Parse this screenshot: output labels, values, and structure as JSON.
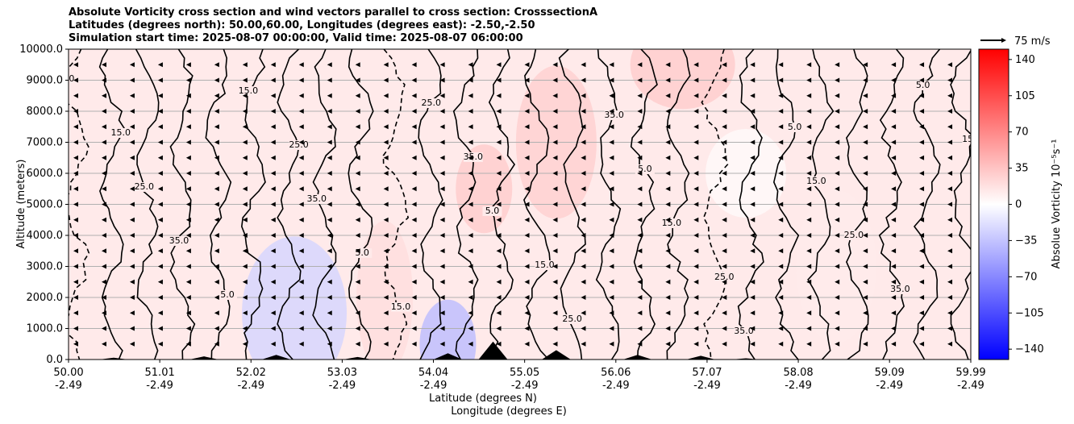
{
  "chart_data": {
    "type": "heatmap",
    "title_lines": [
      "Absolute Vorticity cross section and wind vectors parallel to cross section: CrosssectionA",
      "Latitudes (degrees north): 50.00,60.00, Longitudes (degrees east): -2.50,-2.50",
      "Simulation start time: 2025-08-07 00:00:00, Valid time: 2025-08-07 06:00:00"
    ],
    "ylabel": "Altitude (meters)",
    "xlabel_lat": "Latitude (degrees N)",
    "xlabel_lon": "Longitude (degrees E)",
    "ylim": [
      0,
      10000
    ],
    "xlim": [
      50.0,
      59.99
    ],
    "y_ticks": [
      0,
      1000,
      2000,
      3000,
      4000,
      5000,
      6000,
      7000,
      8000,
      9000,
      10000
    ],
    "y_tick_labels": [
      "0.0",
      "1000.0",
      "2000.0",
      "3000.0",
      "4000.0",
      "5000.0",
      "6000.0",
      "7000.0",
      "8000.0",
      "9000.0",
      "10000.0"
    ],
    "x_ticks": [
      50.0,
      51.01,
      52.02,
      53.03,
      54.04,
      55.05,
      56.06,
      57.07,
      58.08,
      59.09,
      59.99
    ],
    "x_tick_lat_labels": [
      "50.00",
      "51.01",
      "52.02",
      "53.03",
      "54.04",
      "55.05",
      "56.06",
      "57.07",
      "58.08",
      "59.09",
      "59.99"
    ],
    "x_tick_lon_labels": [
      "-2.49",
      "-2.49",
      "-2.49",
      "-2.49",
      "-2.49",
      "-2.49",
      "-2.49",
      "-2.49",
      "-2.49",
      "-2.49",
      "-2.49"
    ],
    "grid": "horizontal",
    "colorbar": {
      "label": "Absolue Vorticity 10⁻⁵s⁻¹",
      "range": [
        -150,
        150
      ],
      "ticks": [
        140,
        105,
        70,
        35,
        0,
        -35,
        -70,
        -105,
        -140
      ],
      "tick_labels": [
        "140",
        "105",
        "70",
        "35",
        "0",
        "−35",
        "−70",
        "−105",
        "−140"
      ],
      "colors": {
        "low": "#0000ff",
        "mid": "#ffffff",
        "high": "#ff0000"
      }
    },
    "quiver_key": {
      "label": "75 m/s"
    },
    "contour_levels": [
      5.0,
      15.0,
      25.0,
      35.0
    ],
    "contour_level_labels": [
      "5.0",
      "15.0",
      "25.0",
      "35.0"
    ],
    "wind_vectors": {
      "direction": "towards decreasing latitude",
      "levels_m": [
        0,
        500,
        1000,
        1500,
        2000,
        2500,
        3000,
        3500,
        4000,
        4500,
        5000,
        5500,
        6000,
        6500,
        7000,
        7500,
        8000,
        8500,
        9000,
        9500
      ]
    },
    "vorticity_field_samples": [
      {
        "lat": 54.6,
        "alt": 5500,
        "value": 30
      },
      {
        "lat": 55.4,
        "alt": 7000,
        "value": 28
      },
      {
        "lat": 56.8,
        "alt": 9500,
        "value": 30
      },
      {
        "lat": 53.5,
        "alt": 2000,
        "value": 20
      },
      {
        "lat": 57.5,
        "alt": 6000,
        "value": 3
      },
      {
        "lat": 52.5,
        "alt": 1500,
        "value": -25
      },
      {
        "lat": 54.2,
        "alt": 500,
        "value": -40
      },
      {
        "lat": 58.5,
        "alt": 3000,
        "value": 12
      }
    ],
    "terrain_peaks": [
      {
        "lat": 50.5,
        "alt": 60
      },
      {
        "lat": 51.5,
        "alt": 100
      },
      {
        "lat": 52.3,
        "alt": 150
      },
      {
        "lat": 53.2,
        "alt": 80
      },
      {
        "lat": 54.2,
        "alt": 200
      },
      {
        "lat": 54.7,
        "alt": 580
      },
      {
        "lat": 55.4,
        "alt": 300
      },
      {
        "lat": 56.3,
        "alt": 150
      },
      {
        "lat": 57.0,
        "alt": 120
      },
      {
        "lat": 57.5,
        "alt": 40
      }
    ]
  }
}
